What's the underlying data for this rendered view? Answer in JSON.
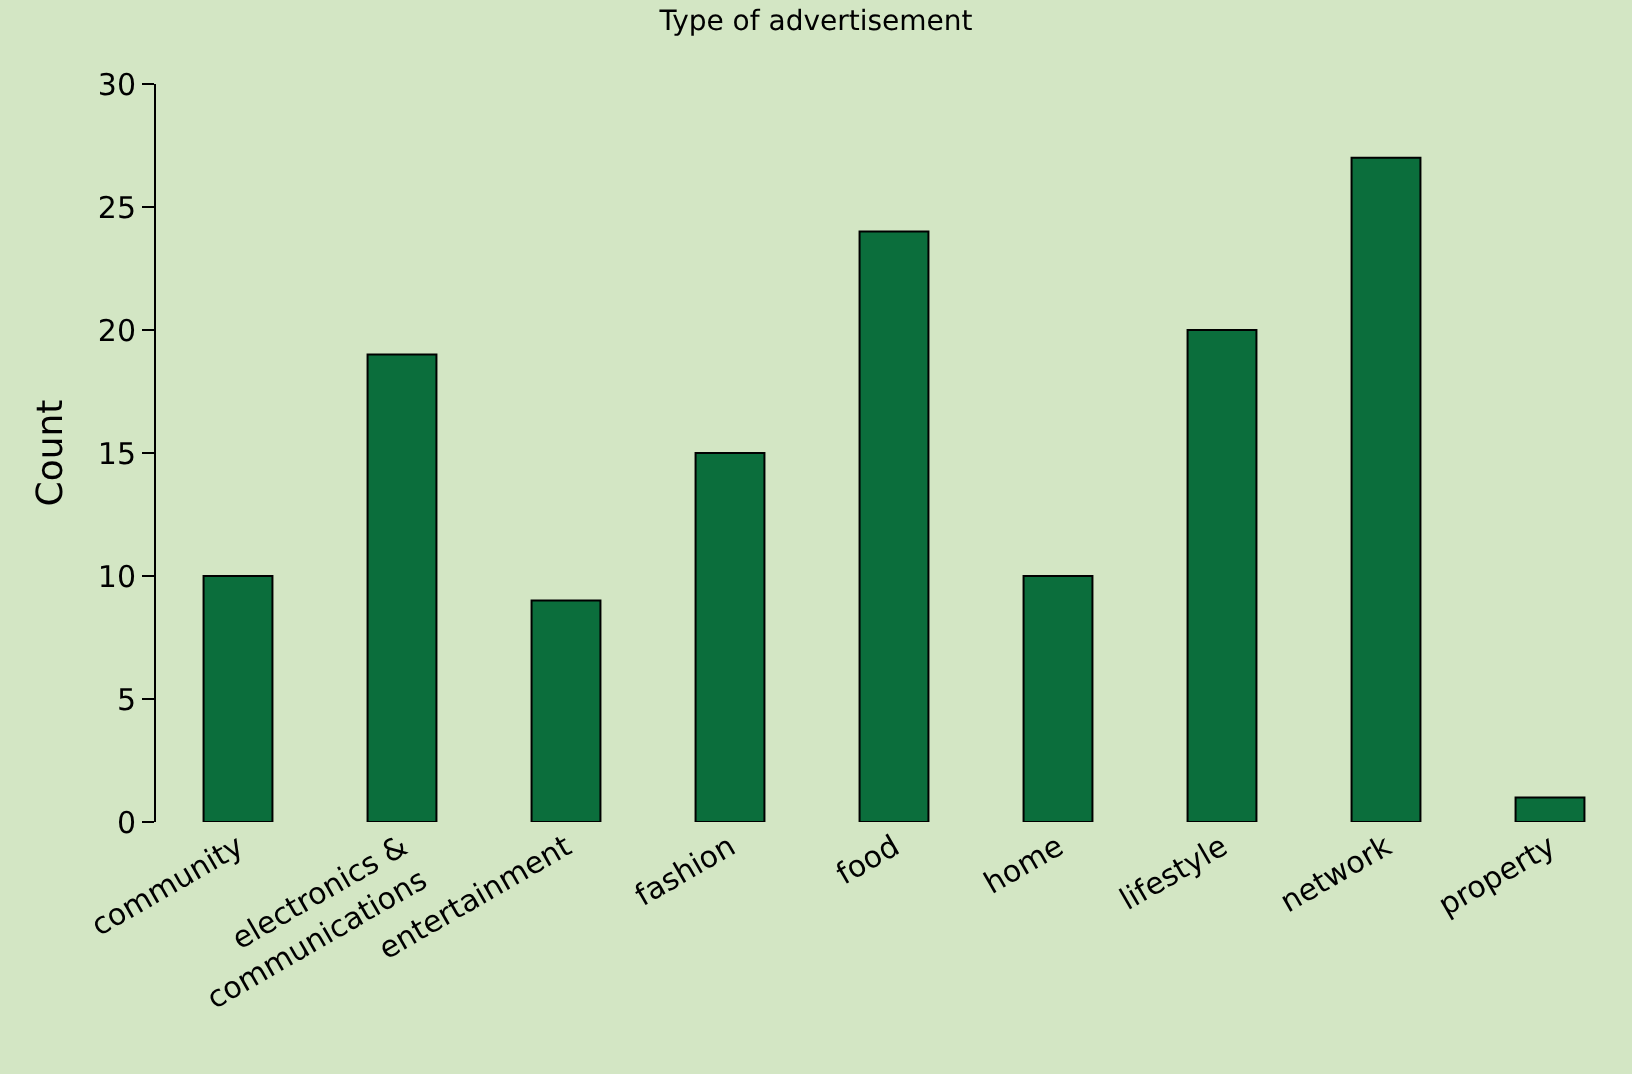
{
  "chart_data": {
    "type": "bar",
    "title": "Type of advertisement",
    "ylabel": "Count",
    "categories": [
      "community",
      "electronics &\ncommunications",
      "entertainment",
      "fashion",
      "food",
      "home",
      "lifestyle",
      "network",
      "property"
    ],
    "values": [
      10,
      19,
      9,
      15,
      24,
      10,
      20,
      27,
      1
    ],
    "color": "#0b6e3c",
    "ylim": [
      0,
      30
    ],
    "yticks": [
      0,
      5,
      10,
      15,
      20,
      25,
      30
    ]
  }
}
